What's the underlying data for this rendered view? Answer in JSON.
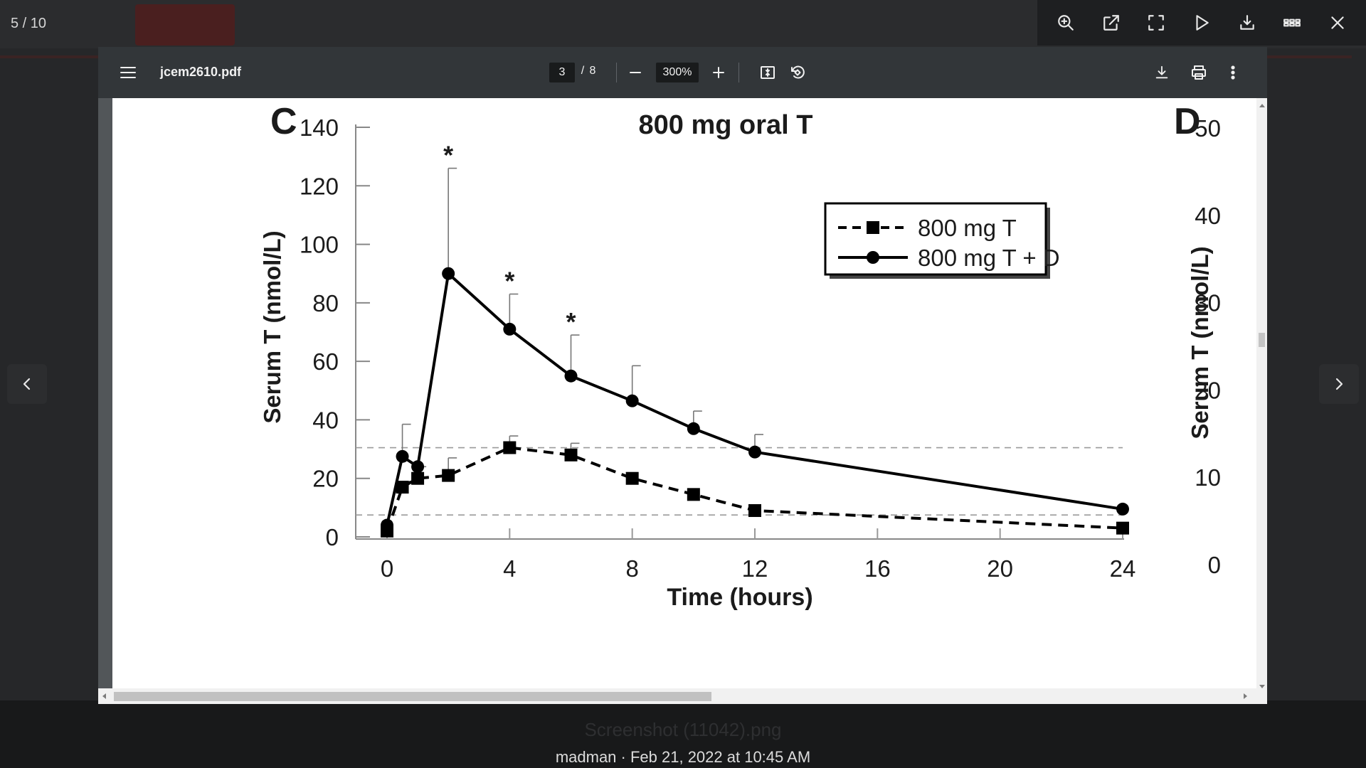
{
  "gallery": {
    "counter": "5 / 10",
    "caption": "madman · Feb 21, 2022 at 10:45 AM",
    "background_filename": "Screenshot (11042).png",
    "toolbar_icons": [
      "zoom-in-icon",
      "open-external-icon",
      "fullscreen-icon",
      "slideshow-play-icon",
      "download-icon",
      "thumbnails-grid-icon",
      "close-icon"
    ]
  },
  "viewer": {
    "title": "jcem2610.pdf",
    "page_current": "3",
    "page_separator": "/",
    "page_total": "8",
    "zoom": "300%"
  },
  "chart_data": {
    "type": "line",
    "title": "800 mg oral T",
    "panel_left_label": "C",
    "panel_right_label": "D",
    "xlabel": "Time (hours)",
    "ylabel": "Serum T (nmol/L)",
    "ylabel_right": "Serum T (nmol/L)",
    "x_ticks": [
      0,
      4,
      8,
      12,
      16,
      20,
      24
    ],
    "y_ticks": [
      0,
      20,
      40,
      60,
      80,
      100,
      120,
      140
    ],
    "y_right_ticks": [
      0,
      10,
      20,
      30,
      40,
      50
    ],
    "xlim": [
      0,
      24
    ],
    "ylim": [
      0,
      140
    ],
    "reference_lines_y": [
      7.5,
      30.5
    ],
    "legend_position": "top-right",
    "series": [
      {
        "name": "800 mg T",
        "style": "dashed",
        "marker": "square",
        "x": [
          0,
          0.5,
          1,
          2,
          4,
          6,
          8,
          10,
          12,
          24
        ],
        "y": [
          2,
          17,
          20,
          21,
          30.5,
          28,
          20,
          14.5,
          9,
          3
        ],
        "error": [
          0,
          2,
          4,
          6,
          4,
          4,
          0,
          0,
          0,
          0
        ]
      },
      {
        "name": "800 mg T + D",
        "style": "solid",
        "marker": "circle",
        "x": [
          0,
          0.5,
          1,
          2,
          4,
          6,
          8,
          10,
          12,
          24
        ],
        "y": [
          4,
          27.5,
          24,
          90,
          71,
          55,
          46.5,
          37,
          29,
          9.5
        ],
        "error": [
          0,
          11,
          0,
          36,
          12,
          14,
          12,
          6,
          6,
          0
        ]
      }
    ],
    "significance_marks": [
      {
        "x": 2,
        "label": "*"
      },
      {
        "x": 4,
        "label": "*"
      },
      {
        "x": 6,
        "label": "*"
      }
    ]
  }
}
